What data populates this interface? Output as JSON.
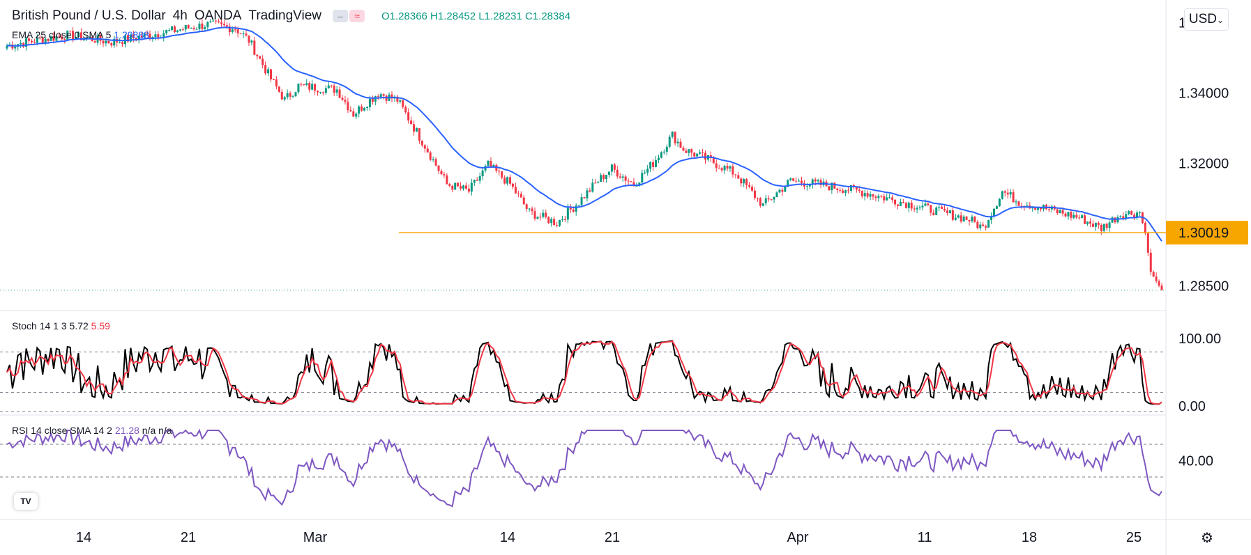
{
  "header": {
    "symbol": "British Pound / U.S. Dollar",
    "interval": "4h",
    "broker": "OANDA",
    "platform": "TradingView",
    "ohlc": "O1.28366  H1.28452  L1.28231  C1.28384"
  },
  "indicators": {
    "ema": {
      "label": "EMA 25 close 0 SMA 5",
      "value": "1.29888"
    },
    "stoch": {
      "label": "Stoch 14 1 3",
      "k": "5.72",
      "d": "5.59"
    },
    "rsi": {
      "label": "RSI 14 close SMA 14 2",
      "value": "21.28",
      "n1": "n/a",
      "n2": "n/a"
    }
  },
  "currency_button": "USD",
  "icons": {
    "settings": "gear-icon",
    "logo": "tv-logo-icon",
    "currency_caret": "chevron-down-icon"
  },
  "colors": {
    "up": "#089981",
    "down": "#f23645",
    "ema": "#2962ff",
    "support": "#f7a600",
    "rsi": "#7e57c2"
  },
  "chart_data": {
    "type": "candlestick",
    "price_axis": {
      "ticks": [
        "1.36000",
        "1.34000",
        "1.32000",
        "1.30019",
        "1.28500"
      ],
      "ylim": [
        1.2782,
        1.3645
      ]
    },
    "support_level": {
      "label": "1.30019",
      "value": 1.30019
    },
    "last_price": 1.28384,
    "x_ticks": [
      "14",
      "21",
      "Mar",
      "14",
      "21",
      "Apr",
      "11",
      "18",
      "25"
    ],
    "anchors": [
      [
        0,
        1.3535
      ],
      [
        22,
        1.3565
      ],
      [
        38,
        1.3545
      ],
      [
        55,
        1.357
      ],
      [
        73,
        1.3595
      ],
      [
        83,
        1.3585
      ],
      [
        88,
        1.355
      ],
      [
        96,
        1.344
      ],
      [
        101,
        1.338
      ],
      [
        106,
        1.342
      ],
      [
        120,
        1.341
      ],
      [
        126,
        1.334
      ],
      [
        135,
        1.34
      ],
      [
        142,
        1.338
      ],
      [
        152,
        1.325
      ],
      [
        160,
        1.314
      ],
      [
        168,
        1.312
      ],
      [
        175,
        1.3195
      ],
      [
        183,
        1.314
      ],
      [
        190,
        1.306
      ],
      [
        200,
        1.303
      ],
      [
        208,
        1.309
      ],
      [
        215,
        1.315
      ],
      [
        220,
        1.3185
      ],
      [
        228,
        1.314
      ],
      [
        235,
        1.32
      ],
      [
        242,
        1.328
      ],
      [
        246,
        1.324
      ],
      [
        255,
        1.321
      ],
      [
        265,
        1.317
      ],
      [
        275,
        1.308
      ],
      [
        285,
        1.315
      ],
      [
        295,
        1.314
      ],
      [
        310,
        1.312
      ],
      [
        325,
        1.309
      ],
      [
        340,
        1.306
      ],
      [
        350,
        1.304
      ],
      [
        355,
        1.3015
      ],
      [
        362,
        1.312
      ],
      [
        368,
        1.309
      ],
      [
        378,
        1.307
      ],
      [
        390,
        1.3045
      ],
      [
        398,
        1.3015
      ],
      [
        405,
        1.3055
      ],
      [
        412,
        1.306
      ],
      [
        414,
        1.3
      ],
      [
        416,
        1.289
      ],
      [
        420,
        1.2838
      ]
    ],
    "ema_value": 1.29888,
    "stoch": {
      "axis_ticks": [
        "100.00",
        "0.00"
      ],
      "bands": [
        80,
        20
      ],
      "k": 5.72,
      "d": 5.59
    },
    "rsi": {
      "axis_ticks": [
        "40.00"
      ],
      "bands": [
        70,
        50,
        30
      ],
      "value": 21.28
    }
  }
}
